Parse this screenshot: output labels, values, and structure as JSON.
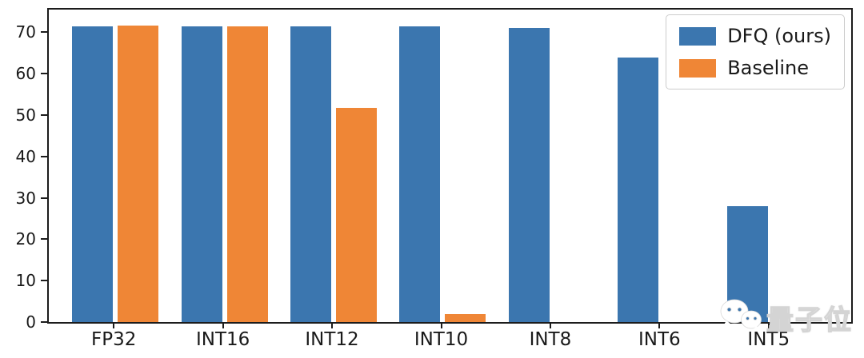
{
  "figure": {
    "background": "#ffffff",
    "spine_color": "#1c1c1c"
  },
  "chart_data": {
    "type": "bar",
    "title": "",
    "xlabel": "",
    "ylabel": "",
    "categories": [
      "FP32",
      "INT16",
      "INT12",
      "INT10",
      "INT8",
      "INT6",
      "INT5"
    ],
    "series": [
      {
        "name": "DFQ (ours)",
        "color": "#3b76af",
        "values": [
          71.5,
          71.5,
          71.5,
          71.5,
          71,
          64,
          28
        ]
      },
      {
        "name": "Baseline",
        "color": "#ef8636",
        "values": [
          71.7,
          71.5,
          51.7,
          2,
          0,
          0,
          0
        ]
      }
    ],
    "ylim": [
      0,
      75.5
    ],
    "yticks": [
      0,
      10,
      20,
      30,
      40,
      50,
      60,
      70
    ],
    "grid": false,
    "legend": {
      "position": "upper-right"
    }
  },
  "watermark": {
    "text": "量子位",
    "icon": "wechat-icon"
  }
}
